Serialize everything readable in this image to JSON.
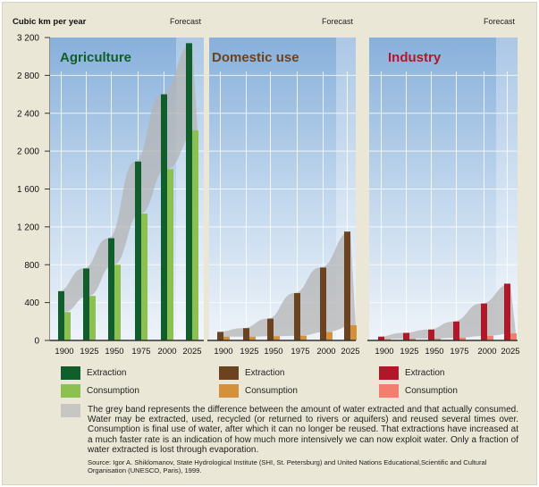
{
  "chart_data": [
    {
      "type": "bar",
      "title": "Agriculture",
      "ylabel": "Cubic km per year",
      "forecast_label": "Forecast",
      "categories": [
        "1900",
        "1925",
        "1950",
        "1975",
        "2000",
        "2025"
      ],
      "ylim": [
        0,
        3200
      ],
      "yticks": [
        "0",
        "400",
        "800",
        "1 200",
        "1 600",
        "2 000",
        "2 400",
        "2 800",
        "3 200"
      ],
      "grid": true,
      "series": [
        {
          "name": "Extraction",
          "color": "#0f5e2c",
          "values": [
            520,
            760,
            1080,
            1890,
            2600,
            3140
          ]
        },
        {
          "name": "Consumption",
          "color": "#8cc152",
          "values": [
            300,
            470,
            800,
            1340,
            1810,
            2220
          ]
        }
      ],
      "title_color": "#0f5e2c"
    },
    {
      "type": "bar",
      "title": "Domestic use",
      "forecast_label": "Forecast",
      "categories": [
        "1900",
        "1925",
        "1950",
        "1975",
        "2000",
        "2025"
      ],
      "ylim": [
        0,
        3200
      ],
      "grid": true,
      "series": [
        {
          "name": "Extraction",
          "color": "#6b4320",
          "values": [
            90,
            130,
            230,
            500,
            770,
            1150
          ]
        },
        {
          "name": "Consumption",
          "color": "#d4903a",
          "values": [
            40,
            40,
            45,
            50,
            90,
            160
          ]
        }
      ],
      "title_color": "#6b4320"
    },
    {
      "type": "bar",
      "title": "Industry",
      "forecast_label": "Forecast",
      "categories": [
        "1900",
        "1925",
        "1950",
        "1975",
        "2000",
        "2025"
      ],
      "ylim": [
        0,
        3200
      ],
      "grid": true,
      "series": [
        {
          "name": "Extraction",
          "color": "#b0182a",
          "values": [
            40,
            80,
            115,
            200,
            390,
            600
          ]
        },
        {
          "name": "Consumption",
          "color": "#f27e6e",
          "values": [
            15,
            20,
            20,
            30,
            50,
            75
          ]
        }
      ],
      "title_color": "#b0182a"
    }
  ],
  "legend": {
    "extraction": "Extraction",
    "consumption": "Consumption",
    "band_color": "#c8c6c2",
    "note": "The grey band represents the difference between the amount of water extracted and that actually consumed. Water may be extracted, used, recycled (or returned to rivers or aquifers) and reused several times over. Consumption is final use of water, after which it can no longer be reused. That extractions have increased at a much faster rate is an indication of how much more intensively we can now exploit water. Only a fraction of water extracted is lost through evaporation.",
    "source": "Source: Igor A. Shiklomanov, State Hydrological Institute (SHI, St. Petersburg) and United Nations Educational,Scientific and Cultural Organisation (UNESCO, Paris), 1999."
  }
}
